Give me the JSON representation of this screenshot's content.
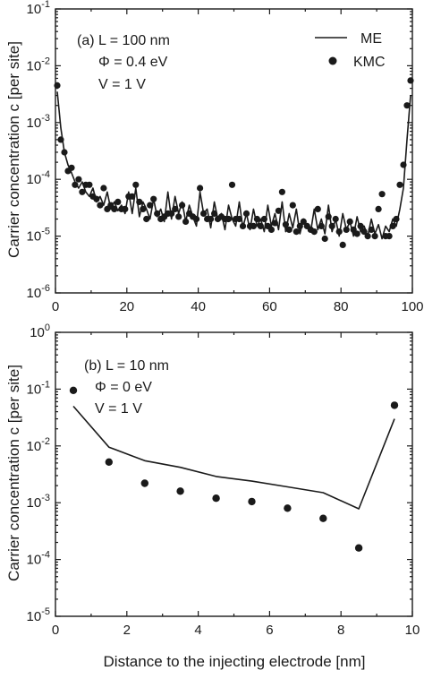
{
  "figure": {
    "xlabel": "Distance to the injecting electrode [nm]"
  },
  "chart_data": [
    {
      "type": "scatter",
      "panel_label": "(a) L = 100 nm",
      "annotations": [
        "Φ = 0.4 eV",
        "V = 1 V"
      ],
      "ylabel": "Carrier concentration c [per site]",
      "xlim": [
        0,
        100
      ],
      "ylim": [
        1e-06,
        0.1
      ],
      "yscale": "log",
      "xticks": [
        "0",
        "20",
        "40",
        "60",
        "80",
        "100"
      ],
      "yticks": [
        "10-6",
        "10-5",
        "10-4",
        "10-3",
        "10-2",
        "10-1"
      ],
      "legend_position": "top-right",
      "series": [
        {
          "name": "ME",
          "style": "line",
          "x": [
            0.5,
            1.5,
            2.5,
            3.5,
            4.5,
            5.5,
            6.5,
            7.5,
            8.5,
            9.5,
            10.5,
            11.5,
            12.5,
            13.5,
            14.5,
            15.5,
            16.5,
            17.5,
            18.5,
            19.5,
            20.5,
            21.5,
            22.5,
            23.5,
            24.5,
            25.5,
            26.5,
            27.5,
            28.5,
            29.5,
            30.5,
            31.5,
            32.5,
            33.5,
            34.5,
            35.5,
            36.5,
            37.5,
            38.5,
            39.5,
            40.5,
            41.5,
            42.5,
            43.5,
            44.5,
            45.5,
            46.5,
            47.5,
            48.5,
            49.5,
            50.5,
            51.5,
            52.5,
            53.5,
            54.5,
            55.5,
            56.5,
            57.5,
            58.5,
            59.5,
            60.5,
            61.5,
            62.5,
            63.5,
            64.5,
            65.5,
            66.5,
            67.5,
            68.5,
            69.5,
            70.5,
            71.5,
            72.5,
            73.5,
            74.5,
            75.5,
            76.5,
            77.5,
            78.5,
            79.5,
            80.5,
            81.5,
            82.5,
            83.5,
            84.5,
            85.5,
            86.5,
            87.5,
            88.5,
            89.5,
            90.5,
            91.5,
            92.5,
            93.5,
            94.5,
            95.5,
            96.5,
            97.5,
            98.5,
            99.5
          ],
          "y": [
            0.0035,
            0.0008,
            0.0003,
            0.00018,
            0.00013,
            9e-05,
            7e-05,
            9e-05,
            6e-05,
            5e-05,
            7e-05,
            4e-05,
            5e-05,
            3.5e-05,
            6e-05,
            3e-05,
            4e-05,
            2.8e-05,
            3.5e-05,
            2.5e-05,
            6e-05,
            2.5e-05,
            7e-05,
            2.2e-05,
            4e-05,
            3e-05,
            2e-05,
            4.5e-05,
            2.2e-05,
            3e-05,
            1.8e-05,
            6e-05,
            2e-05,
            5e-05,
            2.5e-05,
            4e-05,
            1.8e-05,
            3.5e-05,
            2.2e-05,
            1.5e-05,
            6e-05,
            2.5e-05,
            3e-05,
            1.4e-05,
            4e-05,
            2e-05,
            2.5e-05,
            1.3e-05,
            3.5e-05,
            2e-05,
            1.5e-05,
            4e-05,
            1.4e-05,
            2.5e-05,
            1.3e-05,
            3e-05,
            1.5e-05,
            2e-05,
            1.2e-05,
            3.5e-05,
            1.5e-05,
            2.5e-05,
            1.3e-05,
            4e-05,
            1.2e-05,
            2.5e-05,
            1.4e-05,
            3e-05,
            1.1e-05,
            2e-05,
            1.5e-05,
            1.2e-05,
            3e-05,
            1.3e-05,
            2e-05,
            1.1e-05,
            3.5e-05,
            1.2e-05,
            2e-05,
            1e-05,
            2.5e-05,
            1.3e-05,
            1.8e-05,
            1e-05,
            2.2e-05,
            1.2e-05,
            1.5e-05,
            1e-05,
            2e-05,
            1.1e-05,
            1.6e-05,
            9e-06,
            1.5e-05,
            1.2e-05,
            2e-05,
            1.5e-05,
            3e-05,
            7e-05,
            0.0005,
            0.003
          ]
        },
        {
          "name": "KMC",
          "style": "marker",
          "x": [
            0.5,
            1.5,
            2.5,
            3.5,
            4.5,
            5.5,
            6.5,
            7.5,
            8.5,
            9.5,
            10.5,
            11.5,
            12.5,
            13.5,
            14.5,
            15.5,
            16.5,
            17.5,
            18.5,
            19.5,
            20.5,
            21.5,
            22.5,
            23.5,
            24.5,
            25.5,
            26.5,
            27.5,
            28.5,
            29.5,
            30.5,
            31.5,
            32.5,
            33.5,
            34.5,
            35.5,
            36.5,
            37.5,
            38.5,
            39.5,
            40.5,
            41.5,
            42.5,
            43.5,
            44.5,
            45.5,
            46.5,
            47.5,
            48.5,
            49.5,
            50.5,
            51.5,
            52.5,
            53.5,
            54.5,
            55.5,
            56.5,
            57.5,
            58.5,
            59.5,
            60.5,
            61.5,
            62.5,
            63.5,
            64.5,
            65.5,
            66.5,
            67.5,
            68.5,
            69.5,
            70.5,
            71.5,
            72.5,
            73.5,
            74.5,
            75.5,
            76.5,
            77.5,
            78.5,
            79.5,
            80.5,
            81.5,
            82.5,
            83.5,
            84.5,
            85.5,
            86.5,
            87.5,
            88.5,
            89.5,
            90.5,
            91.5,
            92.5,
            93.5,
            94.5,
            95.5,
            96.5,
            97.5,
            98.5,
            99.5
          ],
          "y": [
            0.0045,
            0.0005,
            0.0003,
            0.00014,
            0.00016,
            8e-05,
            0.0001,
            6e-05,
            8e-05,
            8e-05,
            5e-05,
            4.5e-05,
            3.5e-05,
            7e-05,
            3e-05,
            3.5e-05,
            3e-05,
            4e-05,
            3e-05,
            3e-05,
            5e-05,
            5e-05,
            8e-05,
            4e-05,
            3e-05,
            2e-05,
            3.5e-05,
            4.5e-05,
            2.5e-05,
            2e-05,
            2.2e-05,
            2.5e-05,
            2.5e-05,
            3e-05,
            2.2e-05,
            3.5e-05,
            1.8e-05,
            2.5e-05,
            2.2e-05,
            2e-05,
            7e-05,
            2.5e-05,
            2e-05,
            2e-05,
            2.5e-05,
            2e-05,
            2.2e-05,
            2e-05,
            2e-05,
            8e-05,
            2e-05,
            2e-05,
            1.5e-05,
            2.5e-05,
            1.5e-05,
            1.5e-05,
            2e-05,
            1.5e-05,
            2e-05,
            1.5e-05,
            1.3e-05,
            1.7e-05,
            2.8e-05,
            6e-05,
            1.6e-05,
            1.3e-05,
            3.5e-05,
            1.2e-05,
            1.5e-05,
            1.8e-05,
            1.5e-05,
            1.3e-05,
            1.2e-05,
            3e-05,
            1.5e-05,
            9e-06,
            2.2e-05,
            1.5e-05,
            2e-05,
            1.2e-05,
            7e-06,
            1.3e-05,
            1.8e-05,
            1.3e-05,
            1.1e-05,
            1.5e-05,
            1.2e-05,
            1e-05,
            1.3e-05,
            1e-05,
            3e-05,
            5.5e-05,
            1e-05,
            1e-05,
            1.5e-05,
            2e-05,
            8e-05,
            0.00018,
            0.002,
            0.0055
          ]
        }
      ]
    },
    {
      "type": "scatter",
      "panel_label": "(b) L = 10 nm",
      "annotations": [
        "Φ = 0 eV",
        "V = 1 V"
      ],
      "ylabel": "Carrier concentration c [per site]",
      "xlim": [
        0,
        10
      ],
      "ylim": [
        1e-05,
        1
      ],
      "yscale": "log",
      "xticks": [
        "0",
        "2",
        "4",
        "6",
        "8",
        "10"
      ],
      "yticks": [
        "10-5",
        "10-4",
        "10-3",
        "10-2",
        "10-1",
        "100"
      ],
      "series": [
        {
          "name": "ME",
          "style": "line",
          "x": [
            0.5,
            1.5,
            2.5,
            3.5,
            4.5,
            5.5,
            6.5,
            7.5,
            8.5,
            9.5
          ],
          "y": [
            0.05,
            0.0095,
            0.0055,
            0.0042,
            0.0029,
            0.0024,
            0.0019,
            0.0015,
            0.00078,
            0.03
          ]
        },
        {
          "name": "KMC",
          "style": "marker",
          "x": [
            0.5,
            1.5,
            2.5,
            3.5,
            4.5,
            5.5,
            6.5,
            7.5,
            8.5,
            9.5
          ],
          "y": [
            0.095,
            0.0052,
            0.0022,
            0.0016,
            0.0012,
            0.00105,
            0.0008,
            0.00053,
            0.00016,
            0.052
          ]
        }
      ]
    }
  ]
}
